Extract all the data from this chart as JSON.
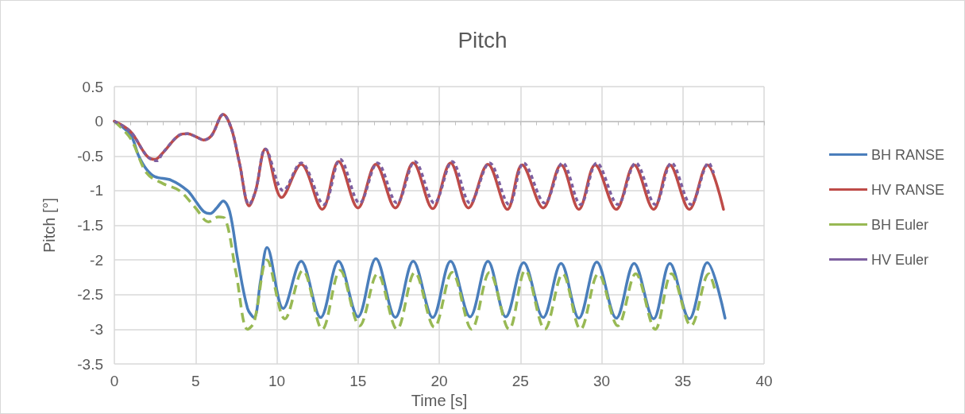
{
  "chart_data": {
    "type": "line",
    "title": "Pitch",
    "xlabel": "Time [s]",
    "ylabel": "Pitch [°]",
    "xlim": [
      0,
      40
    ],
    "xticks": [
      0,
      5,
      10,
      15,
      20,
      25,
      30,
      35,
      40
    ],
    "ylim": [
      -3.5,
      0.5
    ],
    "yticks": [
      -3.5,
      -3,
      -2.5,
      -2,
      -1.5,
      -1,
      -0.5,
      0,
      0.5
    ],
    "grid": true,
    "legend": "right",
    "marker": "none",
    "series": [
      {
        "name": "BH RANSE",
        "color": "#4a7ebb",
        "line_style": "solid",
        "x": [
          0,
          1,
          1.5,
          2,
          2.5,
          3.5,
          4.5,
          5,
          5.5,
          5.9,
          6.3,
          6.7,
          7.1,
          7.6,
          8.2,
          8.6,
          9.0,
          9.4,
          10.4,
          11.5,
          12.7,
          13.8,
          15,
          16.1,
          17.3,
          18.4,
          19.6,
          20.7,
          21.9,
          23,
          24.1,
          25.2,
          26.4,
          27.5,
          28.6,
          29.7,
          30.9,
          32,
          33.2,
          34.2,
          35.4,
          36.5,
          37.6
        ],
        "values": [
          0,
          -0.2,
          -0.5,
          -0.7,
          -0.8,
          -0.85,
          -1.0,
          -1.15,
          -1.3,
          -1.33,
          -1.25,
          -1.15,
          -1.3,
          -2.0,
          -2.7,
          -2.83,
          -2.3,
          -1.82,
          -2.7,
          -2.02,
          -2.83,
          -2.02,
          -2.82,
          -1.98,
          -2.83,
          -2.02,
          -2.83,
          -2.02,
          -2.82,
          -2.02,
          -2.82,
          -2.04,
          -2.83,
          -2.05,
          -2.84,
          -2.03,
          -2.84,
          -2.05,
          -2.85,
          -2.05,
          -2.85,
          -2.04,
          -2.84
        ]
      },
      {
        "name": "HV RANSE",
        "color": "#be4b48",
        "line_style": "solid",
        "x": [
          0,
          1,
          2,
          2.5,
          3,
          4,
          4.5,
          5,
          5.5,
          6,
          6.7,
          7.2,
          7.7,
          8.3,
          8.7,
          9.3,
          10.3,
          11.5,
          12.8,
          13.8,
          15,
          16.1,
          17.3,
          18.4,
          19.6,
          20.7,
          21.8,
          23,
          24.2,
          25.1,
          26.4,
          27.5,
          28.6,
          29.6,
          30.9,
          32,
          33.2,
          34.2,
          35.4,
          36.5,
          37.5
        ],
        "values": [
          0,
          -0.15,
          -0.5,
          -0.55,
          -0.45,
          -0.2,
          -0.18,
          -0.22,
          -0.27,
          -0.2,
          0.1,
          -0.1,
          -0.6,
          -1.22,
          -1.0,
          -0.4,
          -1.1,
          -0.62,
          -1.27,
          -0.58,
          -1.25,
          -0.62,
          -1.25,
          -0.6,
          -1.26,
          -0.6,
          -1.25,
          -0.62,
          -1.27,
          -0.63,
          -1.25,
          -0.63,
          -1.27,
          -0.63,
          -1.27,
          -0.63,
          -1.27,
          -0.63,
          -1.27,
          -0.63,
          -1.27
        ]
      },
      {
        "name": "BH Euler",
        "color": "#98b954",
        "line_style": "dashed",
        "x": [
          0,
          1,
          2,
          3,
          4,
          5,
          5.8,
          6.4,
          6.8,
          7.5,
          8.2,
          8.6,
          9.4,
          10.5,
          11.6,
          12.8,
          13.9,
          15.1,
          16.2,
          17.4,
          18.5,
          19.7,
          20.8,
          22,
          23.1,
          24.3,
          25.3,
          26.5,
          27.6,
          28.7,
          29.8,
          31,
          32.1,
          33.3,
          34.3,
          35.5,
          36.6,
          37
        ],
        "values": [
          0,
          -0.25,
          -0.75,
          -0.9,
          -1.0,
          -1.25,
          -1.45,
          -1.38,
          -1.4,
          -2.2,
          -3.0,
          -2.9,
          -2.0,
          -2.85,
          -2.15,
          -3.0,
          -2.15,
          -2.95,
          -2.2,
          -3.0,
          -2.18,
          -2.97,
          -2.18,
          -3.0,
          -2.18,
          -3.0,
          -2.15,
          -3.0,
          -2.2,
          -3.0,
          -2.2,
          -2.95,
          -2.2,
          -3.0,
          -2.2,
          -2.95,
          -2.2,
          -2.45
        ]
      },
      {
        "name": "HV Euler",
        "color": "#7d60a0",
        "line_style": "dotted",
        "x": [
          0,
          1,
          2,
          2.6,
          3,
          4,
          4.5,
          5,
          5.5,
          6,
          6.7,
          7.2,
          7.7,
          8.3,
          8.7,
          9.3,
          10.4,
          11.5,
          12.9,
          13.9,
          15.1,
          16.2,
          17.4,
          18.5,
          19.7,
          20.8,
          21.9,
          23.1,
          24.3,
          25.2,
          26.5,
          27.6,
          28.7,
          29.7,
          31,
          32.1,
          33.3,
          34.3,
          35.5,
          36.6,
          36.9
        ],
        "values": [
          0,
          -0.15,
          -0.5,
          -0.57,
          -0.45,
          -0.2,
          -0.18,
          -0.22,
          -0.27,
          -0.2,
          0.1,
          -0.1,
          -0.6,
          -1.2,
          -1.0,
          -0.4,
          -1.0,
          -0.6,
          -1.2,
          -0.55,
          -1.18,
          -0.6,
          -1.18,
          -0.58,
          -1.18,
          -0.58,
          -1.18,
          -0.6,
          -1.2,
          -0.6,
          -1.18,
          -0.6,
          -1.2,
          -0.6,
          -1.2,
          -0.6,
          -1.2,
          -0.6,
          -1.2,
          -0.6,
          -0.75
        ]
      }
    ]
  }
}
